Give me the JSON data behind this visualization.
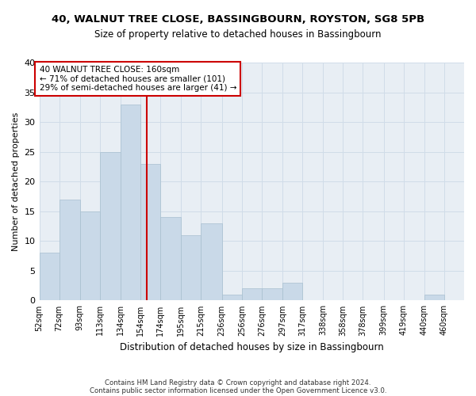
{
  "title1": "40, WALNUT TREE CLOSE, BASSINGBOURN, ROYSTON, SG8 5PB",
  "title2": "Size of property relative to detached houses in Bassingbourn",
  "xlabel": "Distribution of detached houses by size in Bassingbourn",
  "ylabel": "Number of detached properties",
  "footer1": "Contains HM Land Registry data © Crown copyright and database right 2024.",
  "footer2": "Contains public sector information licensed under the Open Government Licence v3.0.",
  "annotation_line1": "40 WALNUT TREE CLOSE: 160sqm",
  "annotation_line2": "← 71% of detached houses are smaller (101)",
  "annotation_line3": "29% of semi-detached houses are larger (41) →",
  "property_size": 160,
  "bar_color": "#c9d9e8",
  "bar_edge_color": "#a8bfcf",
  "vline_color": "#cc0000",
  "annotation_box_color": "#cc0000",
  "categories": [
    "52sqm",
    "72sqm",
    "93sqm",
    "113sqm",
    "134sqm",
    "154sqm",
    "174sqm",
    "195sqm",
    "215sqm",
    "236sqm",
    "256sqm",
    "276sqm",
    "297sqm",
    "317sqm",
    "338sqm",
    "358sqm",
    "378sqm",
    "399sqm",
    "419sqm",
    "440sqm",
    "460sqm"
  ],
  "values": [
    8,
    17,
    15,
    25,
    33,
    23,
    14,
    11,
    13,
    1,
    2,
    2,
    3,
    0,
    0,
    0,
    0,
    0,
    0,
    1,
    0
  ],
  "bin_edges": [
    52,
    72,
    93,
    113,
    134,
    154,
    174,
    195,
    215,
    236,
    256,
    276,
    297,
    317,
    338,
    358,
    378,
    399,
    419,
    440,
    460,
    480
  ],
  "ylim": [
    0,
    40
  ],
  "yticks": [
    0,
    5,
    10,
    15,
    20,
    25,
    30,
    35,
    40
  ],
  "grid_color": "#d0dce8",
  "bg_color": "#e8eef4"
}
